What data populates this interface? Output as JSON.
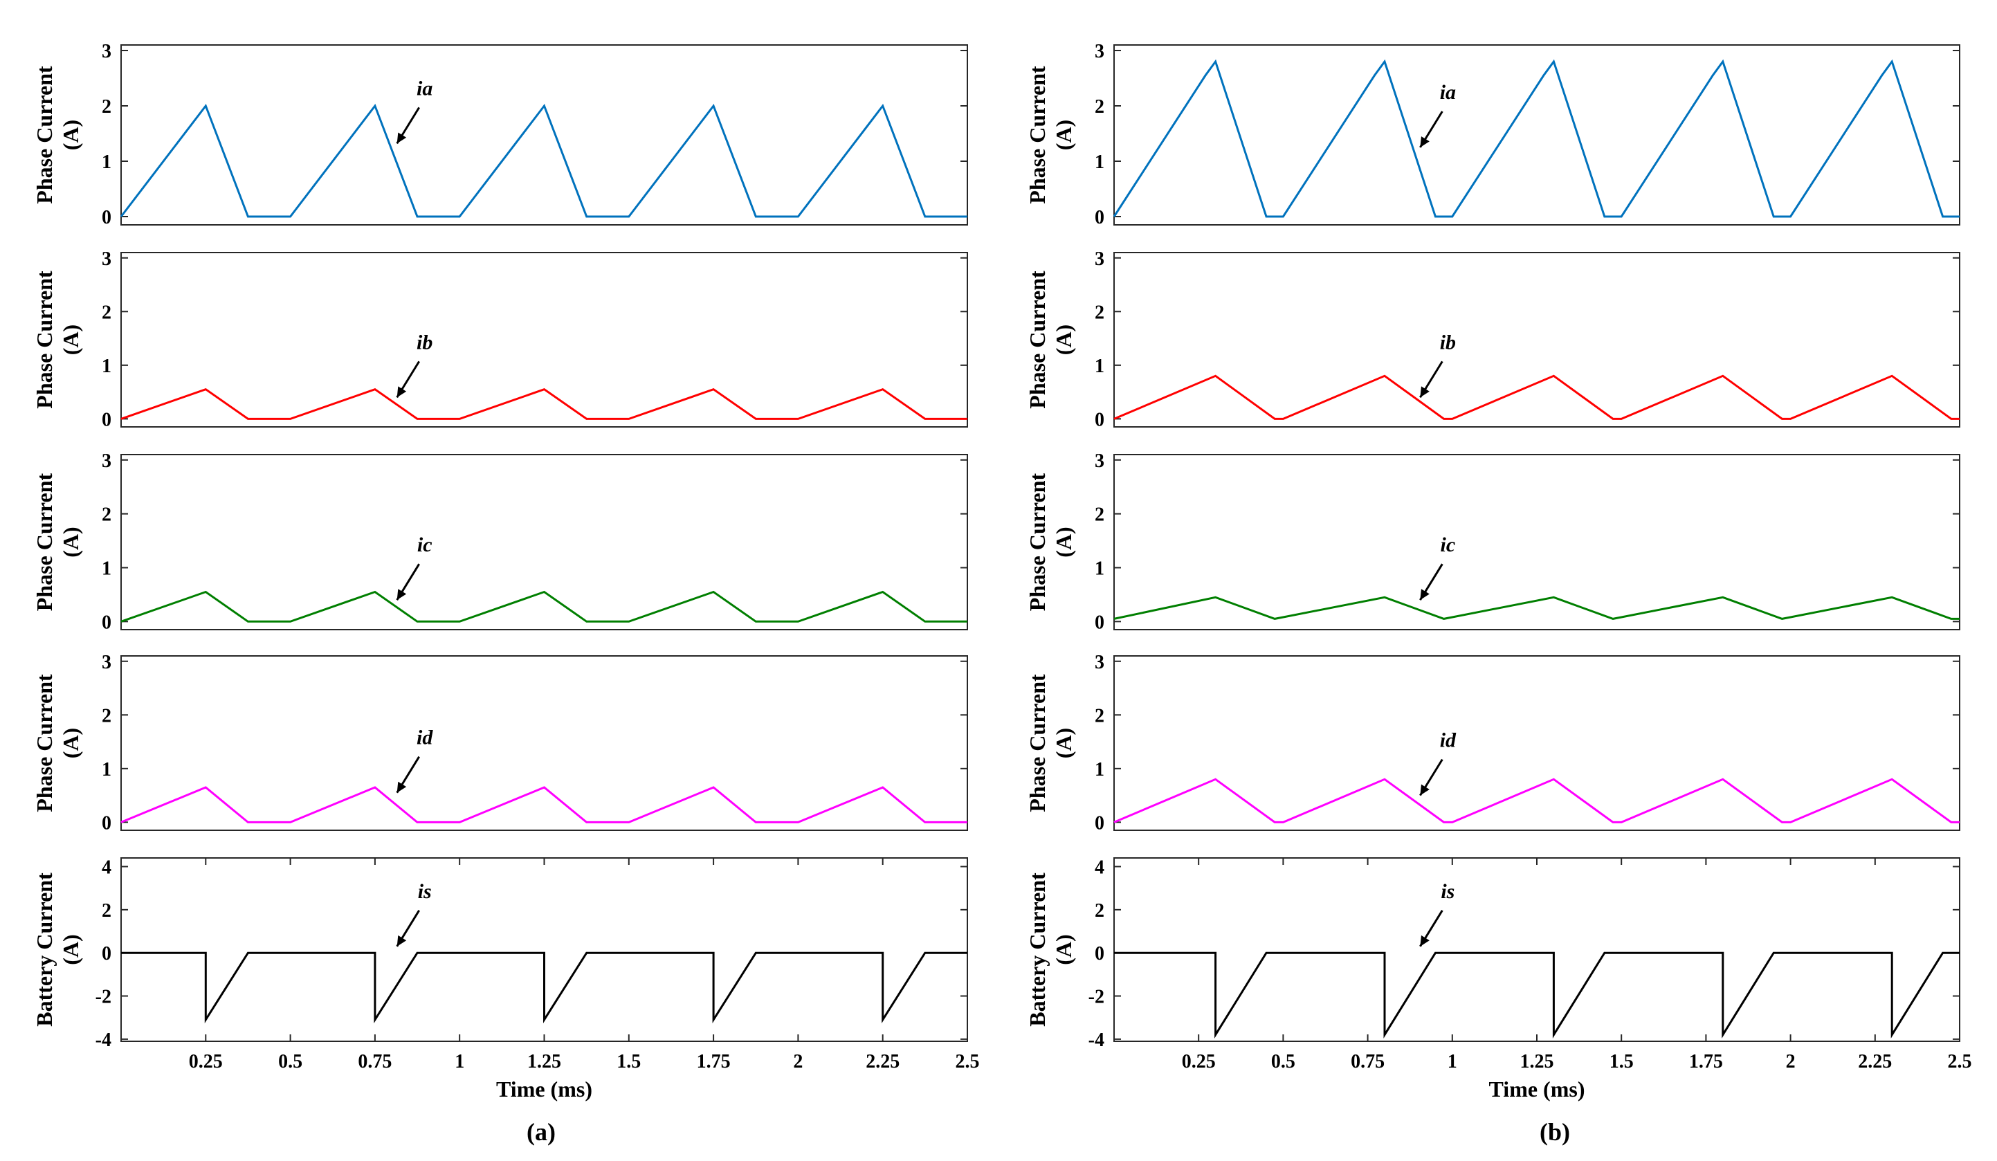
{
  "figure": {
    "panel_labels": [
      "(a)",
      "(b)"
    ]
  },
  "chart_data": [
    {
      "type": "line",
      "panel": "(a)",
      "ylabel_lines": [
        "Phase Current",
        "(A)"
      ],
      "xlabel": "",
      "ylim": [
        -0.15,
        3.1
      ],
      "yticks": [
        0,
        1,
        2,
        3
      ],
      "ytick_labels": [
        "0",
        "1",
        "2",
        "3"
      ],
      "xlim": [
        0,
        2.5
      ],
      "xticks": [],
      "xtick_labels": [],
      "series": [
        {
          "name": "ia",
          "color": "#0072BD",
          "x": [
            0,
            0.25,
            0.375,
            0.5,
            0.75,
            0.875,
            1.0,
            1.25,
            1.375,
            1.5,
            1.75,
            1.875,
            2.0,
            2.25,
            2.375,
            2.5
          ],
          "y": [
            0,
            2.0,
            0,
            0,
            2.0,
            0,
            0,
            2.0,
            0,
            0,
            2.0,
            0,
            0,
            2.0,
            0,
            0
          ]
        }
      ],
      "annotation": {
        "text": "ia",
        "target_x": 0.815,
        "target_y": 1.32
      }
    },
    {
      "type": "line",
      "panel": "(a)",
      "ylabel_lines": [
        "Phase Current",
        "(A)"
      ],
      "xlabel": "",
      "ylim": [
        -0.15,
        3.1
      ],
      "yticks": [
        0,
        1,
        2,
        3
      ],
      "ytick_labels": [
        "0",
        "1",
        "2",
        "3"
      ],
      "xlim": [
        0,
        2.5
      ],
      "xticks": [],
      "xtick_labels": [],
      "series": [
        {
          "name": "ib",
          "color": "#FF0000",
          "x": [
            0,
            0.25,
            0.375,
            0.5,
            0.75,
            0.875,
            1.0,
            1.25,
            1.375,
            1.5,
            1.75,
            1.875,
            2.0,
            2.25,
            2.375,
            2.5
          ],
          "y": [
            0,
            0.55,
            0,
            0,
            0.55,
            0,
            0,
            0.55,
            0,
            0,
            0.55,
            0,
            0,
            0.55,
            0,
            0
          ]
        }
      ],
      "annotation": {
        "text": "ib",
        "target_x": 0.815,
        "target_y": 0.4
      }
    },
    {
      "type": "line",
      "panel": "(a)",
      "ylabel_lines": [
        "Phase Current",
        "(A)"
      ],
      "xlabel": "",
      "ylim": [
        -0.15,
        3.1
      ],
      "yticks": [
        0,
        1,
        2,
        3
      ],
      "ytick_labels": [
        "0",
        "1",
        "2",
        "3"
      ],
      "xlim": [
        0,
        2.5
      ],
      "xticks": [],
      "xtick_labels": [],
      "series": [
        {
          "name": "ic",
          "color": "#007F00",
          "x": [
            0,
            0.25,
            0.375,
            0.5,
            0.75,
            0.875,
            1.0,
            1.25,
            1.375,
            1.5,
            1.75,
            1.875,
            2.0,
            2.25,
            2.375,
            2.5
          ],
          "y": [
            0,
            0.55,
            0,
            0,
            0.55,
            0,
            0,
            0.55,
            0,
            0,
            0.55,
            0,
            0,
            0.55,
            0,
            0
          ]
        }
      ],
      "annotation": {
        "text": "ic",
        "target_x": 0.815,
        "target_y": 0.4
      }
    },
    {
      "type": "line",
      "panel": "(a)",
      "ylabel_lines": [
        "Phase Current",
        "(A)"
      ],
      "xlabel": "",
      "ylim": [
        -0.15,
        3.1
      ],
      "yticks": [
        0,
        1,
        2,
        3
      ],
      "ytick_labels": [
        "0",
        "1",
        "2",
        "3"
      ],
      "xlim": [
        0,
        2.5
      ],
      "xticks": [],
      "xtick_labels": [],
      "series": [
        {
          "name": "id",
          "color": "#FF00FF",
          "x": [
            0,
            0.25,
            0.375,
            0.5,
            0.75,
            0.875,
            1.0,
            1.25,
            1.375,
            1.5,
            1.75,
            1.875,
            2.0,
            2.25,
            2.375,
            2.5
          ],
          "y": [
            0,
            0.65,
            0,
            0,
            0.65,
            0,
            0,
            0.65,
            0,
            0,
            0.65,
            0,
            0,
            0.65,
            0,
            0
          ]
        }
      ],
      "annotation": {
        "text": "id",
        "target_x": 0.815,
        "target_y": 0.55
      }
    },
    {
      "type": "line",
      "panel": "(a)",
      "ylabel_lines": [
        "Battery Current",
        "(A)"
      ],
      "xlabel": "Time (ms)",
      "ylim": [
        -4.1,
        4.4
      ],
      "yticks": [
        -4,
        -2,
        0,
        2,
        4
      ],
      "ytick_labels": [
        "-4",
        "-2",
        "0",
        "2",
        "4"
      ],
      "xlim": [
        0,
        2.5
      ],
      "xticks": [
        0.25,
        0.5,
        0.75,
        1,
        1.25,
        1.5,
        1.75,
        2,
        2.25,
        2.5
      ],
      "xtick_labels": [
        "0.25",
        "0.5",
        "0.75",
        "1",
        "1.25",
        "1.5",
        "1.75",
        "2",
        "2.25",
        "2.5"
      ],
      "series": [
        {
          "name": "is",
          "color": "#000000",
          "x": [
            0,
            0.25,
            0.25,
            0.375,
            0.75,
            0.75,
            0.875,
            1.25,
            1.25,
            1.375,
            1.75,
            1.75,
            1.875,
            2.25,
            2.25,
            2.375,
            2.5
          ],
          "y": [
            0,
            0,
            -3.1,
            0,
            0,
            -3.1,
            0,
            0,
            -3.1,
            0,
            0,
            -3.1,
            0,
            0,
            -3.1,
            0,
            0
          ]
        }
      ],
      "annotation": {
        "text": "is",
        "target_x": 0.815,
        "target_y": 0.3
      }
    },
    {
      "type": "line",
      "panel": "(b)",
      "ylabel_lines": [
        "Phase Current",
        "(A)"
      ],
      "xlabel": "",
      "ylim": [
        -0.15,
        3.1
      ],
      "yticks": [
        0,
        1,
        2,
        3
      ],
      "ytick_labels": [
        "0",
        "1",
        "2",
        "3"
      ],
      "xlim": [
        0,
        2.5
      ],
      "xticks": [],
      "xtick_labels": [],
      "series": [
        {
          "name": "ia",
          "color": "#0072BD",
          "x": [
            0,
            0.27,
            0.3,
            0.45,
            0.5,
            0.77,
            0.8,
            0.95,
            1.0,
            1.27,
            1.3,
            1.45,
            1.5,
            1.77,
            1.8,
            1.95,
            2.0,
            2.27,
            2.3,
            2.45,
            2.5
          ],
          "y": [
            0,
            2.55,
            2.8,
            0,
            0,
            2.55,
            2.8,
            0,
            0,
            2.55,
            2.8,
            0,
            0,
            2.55,
            2.8,
            0,
            0,
            2.55,
            2.8,
            0,
            0
          ]
        }
      ],
      "annotation": {
        "text": "ia",
        "target_x": 0.905,
        "target_y": 1.25
      }
    },
    {
      "type": "line",
      "panel": "(b)",
      "ylabel_lines": [
        "Phase Current",
        "(A)"
      ],
      "xlabel": "",
      "ylim": [
        -0.15,
        3.1
      ],
      "yticks": [
        0,
        1,
        2,
        3
      ],
      "ytick_labels": [
        "0",
        "1",
        "2",
        "3"
      ],
      "xlim": [
        0,
        2.5
      ],
      "xticks": [],
      "xtick_labels": [],
      "series": [
        {
          "name": "ib",
          "color": "#FF0000",
          "x": [
            0,
            0.3,
            0.475,
            0.5,
            0.8,
            0.975,
            1.0,
            1.3,
            1.475,
            1.5,
            1.8,
            1.975,
            2.0,
            2.3,
            2.475,
            2.5
          ],
          "y": [
            0,
            0.8,
            0,
            0,
            0.8,
            0,
            0,
            0.8,
            0,
            0,
            0.8,
            0,
            0,
            0.8,
            0,
            0
          ]
        }
      ],
      "annotation": {
        "text": "ib",
        "target_x": 0.905,
        "target_y": 0.4
      }
    },
    {
      "type": "line",
      "panel": "(b)",
      "ylabel_lines": [
        "Phase Current",
        "(A)"
      ],
      "xlabel": "",
      "ylim": [
        -0.15,
        3.1
      ],
      "yticks": [
        0,
        1,
        2,
        3
      ],
      "ytick_labels": [
        "0",
        "1",
        "2",
        "3"
      ],
      "xlim": [
        0,
        2.5
      ],
      "xticks": [],
      "xtick_labels": [],
      "series": [
        {
          "name": "ic",
          "color": "#007F00",
          "x": [
            0,
            0.3,
            0.475,
            0.8,
            0.975,
            1.3,
            1.475,
            1.8,
            1.975,
            2.3,
            2.475,
            2.5
          ],
          "y": [
            0.05,
            0.45,
            0.05,
            0.45,
            0.05,
            0.45,
            0.05,
            0.45,
            0.05,
            0.45,
            0.05,
            0.05
          ]
        }
      ],
      "annotation": {
        "text": "ic",
        "target_x": 0.905,
        "target_y": 0.4
      }
    },
    {
      "type": "line",
      "panel": "(b)",
      "ylabel_lines": [
        "Phase Current",
        "(A)"
      ],
      "xlabel": "",
      "ylim": [
        -0.15,
        3.1
      ],
      "yticks": [
        0,
        1,
        2,
        3
      ],
      "ytick_labels": [
        "0",
        "1",
        "2",
        "3"
      ],
      "xlim": [
        0,
        2.5
      ],
      "xticks": [],
      "xtick_labels": [],
      "series": [
        {
          "name": "id",
          "color": "#FF00FF",
          "x": [
            0,
            0.3,
            0.475,
            0.5,
            0.8,
            0.975,
            1.0,
            1.3,
            1.475,
            1.5,
            1.8,
            1.975,
            2.0,
            2.3,
            2.475,
            2.5
          ],
          "y": [
            0,
            0.8,
            0,
            0,
            0.8,
            0,
            0,
            0.8,
            0,
            0,
            0.8,
            0,
            0,
            0.8,
            0,
            0
          ]
        }
      ],
      "annotation": {
        "text": "id",
        "target_x": 0.905,
        "target_y": 0.5
      }
    },
    {
      "type": "line",
      "panel": "(b)",
      "ylabel_lines": [
        "Battery Current",
        "(A)"
      ],
      "xlabel": "Time (ms)",
      "ylim": [
        -4.1,
        4.4
      ],
      "yticks": [
        -4,
        -2,
        0,
        2,
        4
      ],
      "ytick_labels": [
        "-4",
        "-2",
        "0",
        "2",
        "4"
      ],
      "xlim": [
        0,
        2.5
      ],
      "xticks": [
        0.25,
        0.5,
        0.75,
        1,
        1.25,
        1.5,
        1.75,
        2,
        2.25,
        2.5
      ],
      "xtick_labels": [
        "0.25",
        "0.5",
        "0.75",
        "1",
        "1.25",
        "1.5",
        "1.75",
        "2",
        "2.25",
        "2.5"
      ],
      "series": [
        {
          "name": "is",
          "color": "#000000",
          "x": [
            0,
            0.3,
            0.3,
            0.45,
            0.8,
            0.8,
            0.95,
            1.3,
            1.3,
            1.45,
            1.8,
            1.8,
            1.95,
            2.3,
            2.3,
            2.45,
            2.5
          ],
          "y": [
            0,
            0,
            -3.8,
            0,
            0,
            -3.8,
            0,
            0,
            -3.8,
            0,
            0,
            -3.8,
            0,
            0,
            -3.8,
            0,
            0
          ]
        }
      ],
      "annotation": {
        "text": "is",
        "target_x": 0.905,
        "target_y": 0.3
      }
    }
  ]
}
